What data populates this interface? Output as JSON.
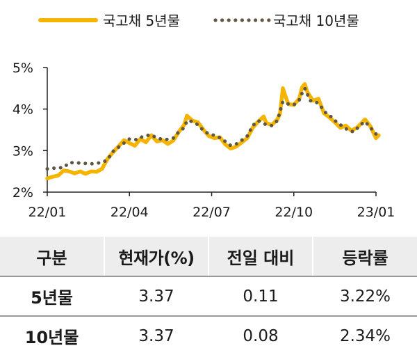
{
  "chart_data": {
    "type": "line",
    "legend": {
      "position": "top",
      "items": [
        "국고채 5년물",
        "국고채 10년물"
      ]
    },
    "yticks": [
      "2%",
      "3%",
      "4%",
      "5%"
    ],
    "xticks": [
      "22/01",
      "22/04",
      "22/07",
      "22/10",
      "23/01"
    ],
    "xtick_positions": [
      0,
      3,
      6,
      9,
      12
    ],
    "ylim": [
      2,
      5
    ],
    "xlim": [
      0,
      12
    ],
    "grid": false,
    "series": [
      {
        "name": "국고채 5년물",
        "color": "#f5b400",
        "style": "solid",
        "points": [
          [
            0.0,
            2.33
          ],
          [
            0.2,
            2.37
          ],
          [
            0.4,
            2.4
          ],
          [
            0.6,
            2.52
          ],
          [
            0.8,
            2.5
          ],
          [
            1.0,
            2.45
          ],
          [
            1.2,
            2.5
          ],
          [
            1.4,
            2.44
          ],
          [
            1.6,
            2.5
          ],
          [
            1.8,
            2.49
          ],
          [
            2.0,
            2.56
          ],
          [
            2.2,
            2.8
          ],
          [
            2.4,
            2.96
          ],
          [
            2.6,
            3.1
          ],
          [
            2.8,
            3.25
          ],
          [
            3.0,
            3.18
          ],
          [
            3.2,
            3.12
          ],
          [
            3.4,
            3.28
          ],
          [
            3.6,
            3.2
          ],
          [
            3.8,
            3.37
          ],
          [
            4.0,
            3.22
          ],
          [
            4.2,
            3.25
          ],
          [
            4.4,
            3.16
          ],
          [
            4.6,
            3.24
          ],
          [
            4.8,
            3.45
          ],
          [
            5.0,
            3.62
          ],
          [
            5.1,
            3.84
          ],
          [
            5.3,
            3.72
          ],
          [
            5.5,
            3.68
          ],
          [
            5.7,
            3.5
          ],
          [
            5.9,
            3.35
          ],
          [
            6.1,
            3.3
          ],
          [
            6.3,
            3.32
          ],
          [
            6.5,
            3.15
          ],
          [
            6.7,
            3.05
          ],
          [
            6.9,
            3.1
          ],
          [
            7.1,
            3.2
          ],
          [
            7.3,
            3.3
          ],
          [
            7.5,
            3.55
          ],
          [
            7.7,
            3.7
          ],
          [
            7.9,
            3.82
          ],
          [
            8.0,
            3.66
          ],
          [
            8.2,
            3.62
          ],
          [
            8.4,
            3.75
          ],
          [
            8.5,
            3.9
          ],
          [
            8.6,
            4.5
          ],
          [
            8.7,
            4.3
          ],
          [
            8.8,
            4.12
          ],
          [
            9.0,
            4.1
          ],
          [
            9.2,
            4.25
          ],
          [
            9.3,
            4.52
          ],
          [
            9.4,
            4.6
          ],
          [
            9.5,
            4.4
          ],
          [
            9.7,
            4.2
          ],
          [
            9.9,
            4.25
          ],
          [
            10.1,
            3.9
          ],
          [
            10.3,
            3.8
          ],
          [
            10.5,
            3.68
          ],
          [
            10.7,
            3.55
          ],
          [
            10.9,
            3.6
          ],
          [
            11.1,
            3.48
          ],
          [
            11.3,
            3.55
          ],
          [
            11.5,
            3.68
          ],
          [
            11.6,
            3.75
          ],
          [
            11.8,
            3.58
          ],
          [
            12.0,
            3.3
          ],
          [
            12.1,
            3.37
          ]
        ]
      },
      {
        "name": "국고채 10년물",
        "color": "#5f5643",
        "style": "dotted",
        "points": [
          [
            0.0,
            2.56
          ],
          [
            0.3,
            2.58
          ],
          [
            0.6,
            2.59
          ],
          [
            0.8,
            2.71
          ],
          [
            1.2,
            2.7
          ],
          [
            1.6,
            2.68
          ],
          [
            2.0,
            2.71
          ],
          [
            2.2,
            2.78
          ],
          [
            2.4,
            2.98
          ],
          [
            2.6,
            3.08
          ],
          [
            2.8,
            3.18
          ],
          [
            3.0,
            3.28
          ],
          [
            3.3,
            3.26
          ],
          [
            3.5,
            3.35
          ],
          [
            3.8,
            3.38
          ],
          [
            4.0,
            3.3
          ],
          [
            4.3,
            3.26
          ],
          [
            4.6,
            3.3
          ],
          [
            4.8,
            3.45
          ],
          [
            5.0,
            3.55
          ],
          [
            5.1,
            3.72
          ],
          [
            5.3,
            3.7
          ],
          [
            5.5,
            3.62
          ],
          [
            5.7,
            3.48
          ],
          [
            5.9,
            3.4
          ],
          [
            6.2,
            3.35
          ],
          [
            6.5,
            3.22
          ],
          [
            6.7,
            3.12
          ],
          [
            6.9,
            3.16
          ],
          [
            7.1,
            3.25
          ],
          [
            7.3,
            3.35
          ],
          [
            7.5,
            3.6
          ],
          [
            7.7,
            3.72
          ],
          [
            8.0,
            3.62
          ],
          [
            8.2,
            3.6
          ],
          [
            8.4,
            3.72
          ],
          [
            8.6,
            4.18
          ],
          [
            8.8,
            4.12
          ],
          [
            9.0,
            4.1
          ],
          [
            9.2,
            4.22
          ],
          [
            9.3,
            4.38
          ],
          [
            9.4,
            4.5
          ],
          [
            9.6,
            4.2
          ],
          [
            9.8,
            4.18
          ],
          [
            10.0,
            4.05
          ],
          [
            10.2,
            3.88
          ],
          [
            10.4,
            3.8
          ],
          [
            10.6,
            3.66
          ],
          [
            10.8,
            3.58
          ],
          [
            11.0,
            3.48
          ],
          [
            11.2,
            3.45
          ],
          [
            11.4,
            3.6
          ],
          [
            11.6,
            3.7
          ],
          [
            11.8,
            3.55
          ],
          [
            12.0,
            3.4
          ],
          [
            12.1,
            3.37
          ]
        ]
      }
    ]
  },
  "table": {
    "headers": [
      "구분",
      "현재가(%)",
      "전일 대비",
      "등락률"
    ],
    "rows": [
      [
        "5년물",
        "3.37",
        "0.11",
        "3.22%"
      ],
      [
        "10년물",
        "3.37",
        "0.08",
        "2.34%"
      ]
    ]
  }
}
